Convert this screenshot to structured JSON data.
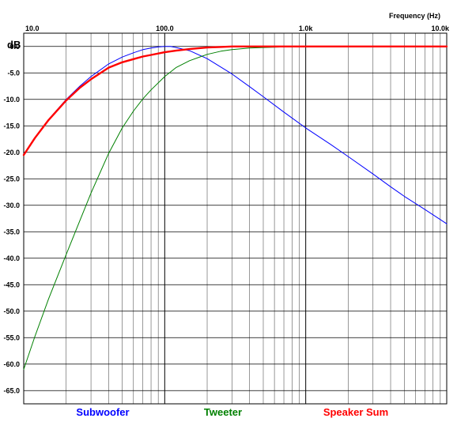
{
  "chart_data": {
    "type": "line",
    "title": "",
    "xlabel": "Frequency  (Hz)",
    "ylabel": "dB",
    "xscale": "log",
    "xlim": [
      10,
      10000
    ],
    "ylim": [
      -67.5,
      2.5
    ],
    "grid": true,
    "legend_position": "bottom",
    "x_tick_labels": [
      "10.0",
      "100.0",
      "1.0k",
      "10.0k"
    ],
    "x_tick_values": [
      10,
      100,
      1000,
      10000
    ],
    "y_tick_labels": [
      "0.0",
      "-5.0",
      "-10.0",
      "-15.0",
      "-20.0",
      "-25.0",
      "-30.0",
      "-35.0",
      "-40.0",
      "-45.0",
      "-50.0",
      "-55.0",
      "-60.0",
      "-65.0"
    ],
    "y_tick_values": [
      0,
      -5,
      -10,
      -15,
      -20,
      -25,
      -30,
      -35,
      -40,
      -45,
      -50,
      -55,
      -60,
      -65
    ],
    "series": [
      {
        "name": "Subwoofer",
        "color": "#0000ff",
        "x": [
          10,
          12,
          15,
          20,
          25,
          30,
          40,
          50,
          60,
          70,
          80,
          90,
          100,
          110,
          120,
          150,
          200,
          300,
          400,
          500,
          700,
          1000,
          1500,
          2000,
          3000,
          4000,
          5000,
          7000,
          10000
        ],
        "y": [
          -20.5,
          -17.3,
          -13.8,
          -10.0,
          -7.5,
          -5.7,
          -3.3,
          -2.0,
          -1.2,
          -0.6,
          -0.3,
          -0.1,
          0.0,
          0.0,
          -0.2,
          -0.8,
          -2.3,
          -5.2,
          -7.6,
          -9.5,
          -12.4,
          -15.4,
          -18.5,
          -20.8,
          -24.1,
          -26.5,
          -28.3,
          -30.8,
          -33.5
        ]
      },
      {
        "name": "Tweeter",
        "color": "#008000",
        "x": [
          10,
          12,
          15,
          20,
          25,
          30,
          40,
          50,
          60,
          70,
          80,
          100,
          120,
          150,
          200,
          250,
          300,
          400,
          500,
          700,
          1000,
          2000,
          10000
        ],
        "y": [
          -61.0,
          -54.8,
          -47.7,
          -39.3,
          -32.9,
          -27.7,
          -20.2,
          -15.4,
          -12.2,
          -9.9,
          -8.2,
          -5.7,
          -4.0,
          -2.7,
          -1.5,
          -0.9,
          -0.6,
          -0.3,
          -0.2,
          -0.1,
          0.0,
          0.0,
          0.0
        ]
      },
      {
        "name": "Speaker Sum",
        "color": "#ff0000",
        "x": [
          10,
          12,
          15,
          20,
          25,
          30,
          40,
          50,
          60,
          70,
          80,
          100,
          120,
          150,
          200,
          250,
          300,
          400,
          500,
          700,
          1000,
          2000,
          10000
        ],
        "y": [
          -20.5,
          -17.3,
          -13.9,
          -10.2,
          -7.8,
          -6.2,
          -4.0,
          -3.0,
          -2.4,
          -1.9,
          -1.6,
          -1.1,
          -0.8,
          -0.5,
          -0.2,
          -0.1,
          0.0,
          0.0,
          0.0,
          0.0,
          0.0,
          0.0,
          0.0
        ]
      }
    ]
  }
}
